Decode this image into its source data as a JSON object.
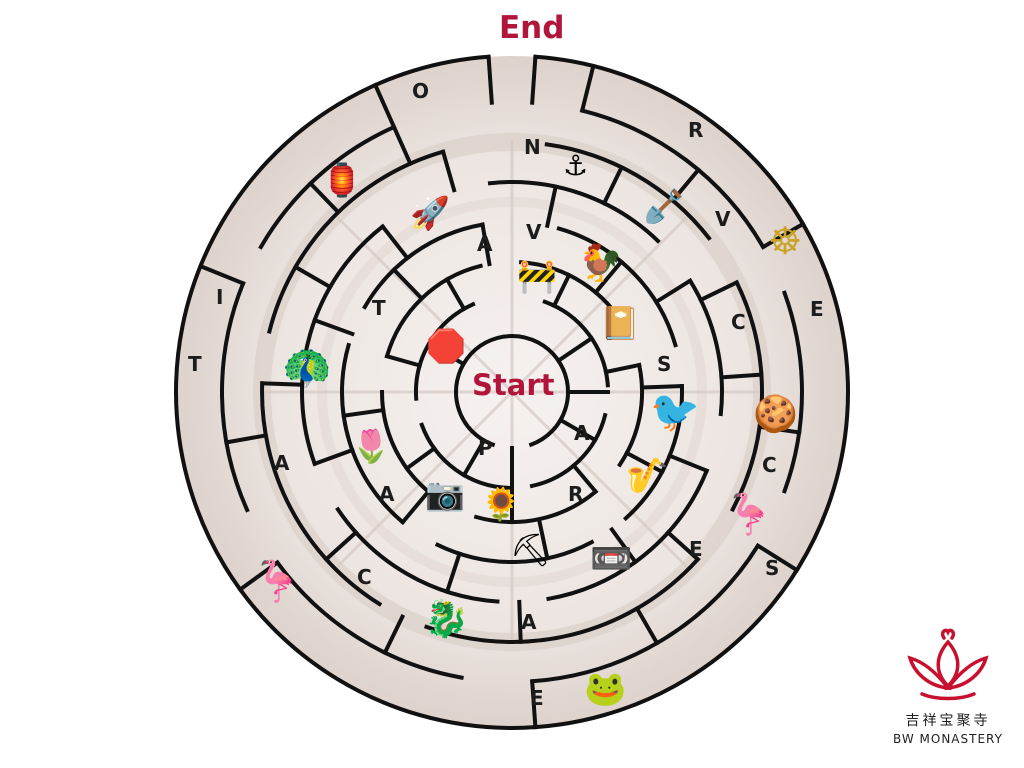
{
  "maze": {
    "end_label": "End",
    "start_label": "Start",
    "letters": [
      {
        "id": "o",
        "text": "O"
      },
      {
        "id": "n",
        "text": "N"
      },
      {
        "id": "r-top",
        "text": "R"
      },
      {
        "id": "v-right",
        "text": "V"
      },
      {
        "id": "e-right",
        "text": "E"
      },
      {
        "id": "c-right",
        "text": "C"
      },
      {
        "id": "s-mid",
        "text": "S"
      },
      {
        "id": "a-mid-right",
        "text": "A"
      },
      {
        "id": "c-lower-right",
        "text": "C"
      },
      {
        "id": "s-lower-right",
        "text": "S"
      },
      {
        "id": "e-lower",
        "text": "E"
      },
      {
        "id": "r-lower",
        "text": "R"
      },
      {
        "id": "a-bottom",
        "text": "A"
      },
      {
        "id": "e-bottom",
        "text": "E"
      },
      {
        "id": "c-left",
        "text": "C"
      },
      {
        "id": "a-inner-left",
        "text": "A"
      },
      {
        "id": "a-left",
        "text": "A"
      },
      {
        "id": "t-outer",
        "text": "T"
      },
      {
        "id": "i",
        "text": "I"
      },
      {
        "id": "t-inner",
        "text": "T"
      },
      {
        "id": "a-inner",
        "text": "A"
      },
      {
        "id": "v-inner",
        "text": "V"
      },
      {
        "id": "p",
        "text": "P"
      }
    ],
    "icons": [
      {
        "id": "lantern",
        "name": "lantern-icon",
        "glyph": "🏮"
      },
      {
        "id": "anchor",
        "name": "anchor-icon",
        "glyph": "⚓"
      },
      {
        "id": "rocket",
        "name": "rocket-icon",
        "glyph": "🚀"
      },
      {
        "id": "shovel",
        "name": "shovel-icon",
        "glyph": "🪏"
      },
      {
        "id": "dharma-wheel",
        "name": "dharma-wheel-icon",
        "glyph": "☸"
      },
      {
        "id": "chicken",
        "name": "chicken-icon",
        "glyph": "🐓"
      },
      {
        "id": "traffic-cone",
        "name": "traffic-cone-icon",
        "glyph": "🚧"
      },
      {
        "id": "book",
        "name": "book-icon",
        "glyph": "📔"
      },
      {
        "id": "stop-sign",
        "name": "stop-sign-icon",
        "glyph": "🛑"
      },
      {
        "id": "peacock",
        "name": "peacock-icon",
        "glyph": "🦚"
      },
      {
        "id": "phoenix",
        "name": "phoenix-icon",
        "glyph": "🐦"
      },
      {
        "id": "cookies",
        "name": "cookies-icon",
        "glyph": "🍪"
      },
      {
        "id": "lotus",
        "name": "lotus-icon",
        "glyph": "🌷"
      },
      {
        "id": "saxophone",
        "name": "saxophone-icon",
        "glyph": "🎷"
      },
      {
        "id": "camera",
        "name": "camera-icon",
        "glyph": "📷"
      },
      {
        "id": "sunflower",
        "name": "sunflower-icon",
        "glyph": "🌻"
      },
      {
        "id": "flamingo-right",
        "name": "flamingo-icon",
        "glyph": "🦩"
      },
      {
        "id": "pickaxe",
        "name": "pickaxe-icon",
        "glyph": "⛏"
      },
      {
        "id": "videocassette",
        "name": "videocassette-icon",
        "glyph": "📼"
      },
      {
        "id": "flamingo-left",
        "name": "flamingo-icon",
        "glyph": "🦩"
      },
      {
        "id": "dragon",
        "name": "dragon-icon",
        "glyph": "🐉"
      },
      {
        "id": "frog",
        "name": "frog-icon",
        "glyph": "🐸"
      }
    ]
  },
  "logo": {
    "chinese_name": "吉祥宝聚寺",
    "english_name": "BW MONASTERY",
    "accent_color": "#c8102e"
  },
  "colors": {
    "wall": "#111111",
    "title": "#b2153a",
    "background_tint": "#efe9e6"
  }
}
